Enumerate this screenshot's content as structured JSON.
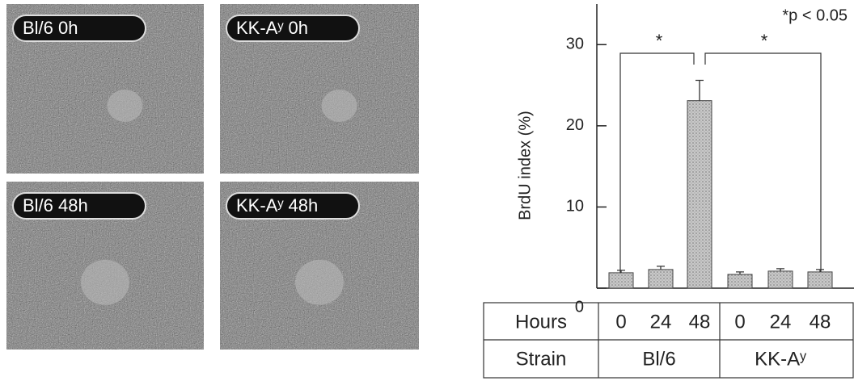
{
  "panels": [
    "Bl/6 0h",
    "KK-Aʸ 0h",
    "Bl/6 48h",
    "KK-Aʸ 48h"
  ],
  "chart_data": {
    "type": "bar",
    "y_label": "BrdU index (%)",
    "note": "*p < 0.05",
    "stars": [
      "*",
      "*"
    ],
    "categories": [
      "0",
      "24",
      "48",
      "0",
      "24",
      "48"
    ],
    "values": [
      1.9,
      2.3,
      23.1,
      1.7,
      2.1,
      2.0
    ],
    "errors": [
      0.3,
      0.4,
      2.5,
      0.3,
      0.3,
      0.3
    ],
    "color": "#b9b9b9",
    "ylim": [
      0,
      35
    ],
    "yticks": [
      0,
      10,
      20,
      30
    ],
    "row_labels": [
      "Hours",
      "Strain"
    ],
    "groups": [
      "Bl/6",
      "KK-Aʸ"
    ]
  }
}
